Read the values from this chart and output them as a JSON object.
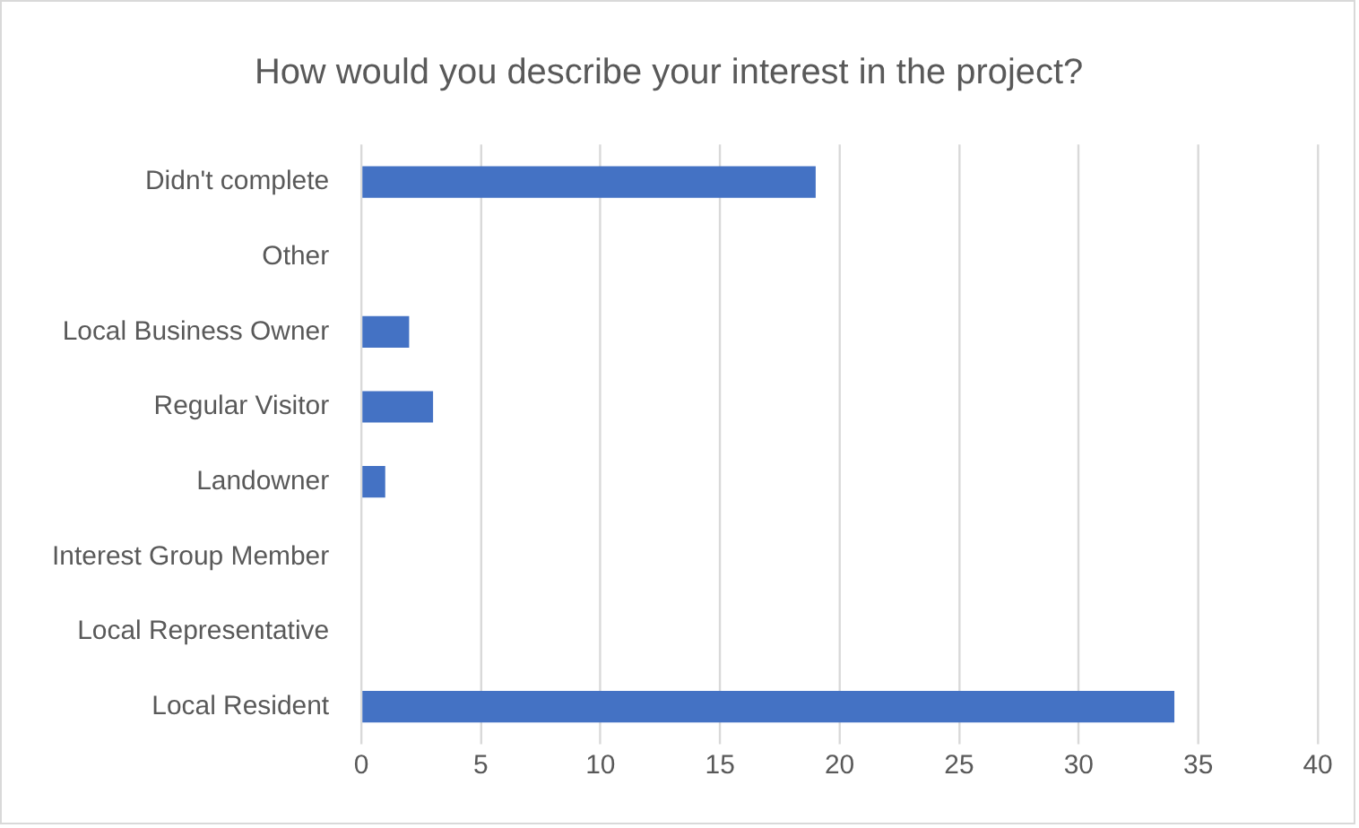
{
  "chart_data": {
    "type": "bar",
    "orientation": "horizontal",
    "title": "How would you describe your interest in the project?",
    "categories": [
      "Didn't complete",
      "Other",
      "Local Business Owner",
      "Regular Visitor",
      "Landowner",
      "Interest Group Member",
      "Local Representative",
      "Local Resident"
    ],
    "values": [
      19,
      0,
      2,
      3,
      1,
      0,
      0,
      34
    ],
    "color": "#4472c4",
    "xlim": [
      0,
      40
    ],
    "xticks": [
      0,
      5,
      10,
      15,
      20,
      25,
      30,
      35,
      40
    ],
    "grid": "x",
    "legend": false
  }
}
